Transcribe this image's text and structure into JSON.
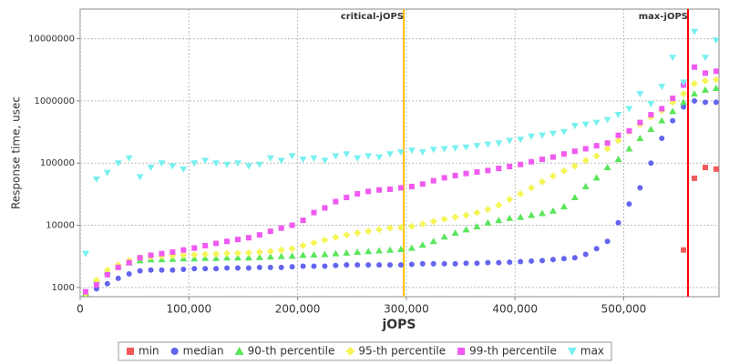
{
  "chart_data": {
    "type": "scatter",
    "x_label": "jOPS",
    "y_label": "Response time, usec",
    "log_y": true,
    "grid": true,
    "legend": "bottom",
    "xlim": [
      0,
      587600
    ],
    "ylim": [
      710,
      30000000
    ],
    "xticks": [
      0,
      {
        "value": 100000,
        "label": "100,000"
      },
      {
        "value": 200000,
        "label": "200,000"
      },
      {
        "value": 300000,
        "label": "300,000"
      },
      {
        "value": 400000,
        "label": "400,000"
      },
      {
        "value": 500000,
        "label": "500,000"
      }
    ],
    "yticks": [
      1000,
      10000,
      100000,
      1000000,
      10000000
    ],
    "vlines": [
      {
        "label": "critical-jOPS",
        "x": 297600,
        "color": "#ffc000"
      },
      {
        "label": "max-jOPS",
        "x": 559100,
        "color": "#ff0000"
      }
    ],
    "x": [
      5000,
      15000,
      25000,
      35000,
      45000,
      55000,
      65000,
      75000,
      85000,
      95000,
      105000,
      115000,
      125000,
      135000,
      145000,
      155000,
      165000,
      175000,
      185000,
      195000,
      205000,
      215000,
      225000,
      235000,
      245000,
      255000,
      265000,
      275000,
      285000,
      295000,
      305000,
      315000,
      325000,
      335000,
      345000,
      355000,
      365000,
      375000,
      385000,
      395000,
      405000,
      415000,
      425000,
      435000,
      445000,
      455000,
      465000,
      475000,
      485000,
      495000,
      505000,
      515000,
      525000,
      535000,
      545000,
      555000,
      565000,
      575000,
      585000
    ],
    "series": [
      {
        "name": "min",
        "color": "#f05a5a",
        "marker": "square",
        "values": [
          null,
          null,
          null,
          null,
          null,
          null,
          null,
          null,
          null,
          null,
          null,
          null,
          null,
          null,
          null,
          null,
          null,
          null,
          null,
          null,
          null,
          null,
          null,
          null,
          null,
          null,
          null,
          null,
          null,
          null,
          null,
          null,
          null,
          null,
          null,
          null,
          null,
          null,
          null,
          null,
          null,
          null,
          null,
          null,
          null,
          null,
          null,
          null,
          null,
          null,
          null,
          null,
          null,
          null,
          null,
          4000,
          57000,
          85000,
          80000
        ]
      },
      {
        "name": "median",
        "color": "#6464f0",
        "marker": "circle",
        "values": [
          800,
          950,
          1150,
          1400,
          1650,
          1850,
          1900,
          1900,
          1900,
          1950,
          2000,
          2000,
          2000,
          2050,
          2050,
          2050,
          2100,
          2100,
          2100,
          2150,
          2200,
          2200,
          2200,
          2250,
          2300,
          2300,
          2300,
          2300,
          2300,
          2300,
          2350,
          2400,
          2400,
          2400,
          2400,
          2450,
          2450,
          2500,
          2500,
          2550,
          2600,
          2650,
          2700,
          2800,
          2900,
          3000,
          3400,
          4200,
          5500,
          11000,
          22000,
          40000,
          100000,
          250000,
          480000,
          800000,
          1000000,
          950000,
          950000
        ]
      },
      {
        "name": "90-th percentile",
        "color": "#5ae65a",
        "marker": "triangle-up",
        "values": [
          800,
          1300,
          1800,
          2200,
          2500,
          2700,
          2800,
          2800,
          2850,
          2900,
          2900,
          2950,
          2950,
          3000,
          3000,
          3000,
          3050,
          3100,
          3150,
          3200,
          3300,
          3350,
          3400,
          3500,
          3600,
          3700,
          3800,
          3900,
          4000,
          4100,
          4300,
          4800,
          5500,
          6500,
          7500,
          8500,
          9500,
          11000,
          12000,
          13000,
          13500,
          14500,
          15500,
          17000,
          20000,
          28000,
          42000,
          58000,
          85000,
          115000,
          170000,
          250000,
          350000,
          480000,
          680000,
          950000,
          1300000,
          1500000,
          1600000
        ]
      },
      {
        "name": "95-th percentile",
        "color": "#f5f55a",
        "marker": "diamond",
        "values": [
          800,
          1300,
          1900,
          2300,
          2700,
          3000,
          3100,
          3200,
          3250,
          3300,
          3350,
          3400,
          3450,
          3500,
          3550,
          3600,
          3700,
          3800,
          4000,
          4200,
          4700,
          5200,
          5800,
          6400,
          7000,
          7500,
          8000,
          8500,
          9000,
          9200,
          9600,
          10500,
          11500,
          12500,
          13500,
          14500,
          16000,
          18000,
          21000,
          26000,
          32000,
          40000,
          50000,
          62000,
          75000,
          90000,
          110000,
          130000,
          170000,
          230000,
          320000,
          420000,
          550000,
          700000,
          950000,
          1300000,
          1900000,
          2100000,
          2200000
        ]
      },
      {
        "name": "99-th percentile",
        "color": "#f05af0",
        "marker": "square",
        "values": [
          850,
          1100,
          1600,
          2100,
          2500,
          3000,
          3300,
          3500,
          3700,
          4000,
          4300,
          4700,
          5100,
          5500,
          5900,
          6300,
          7000,
          8000,
          9000,
          10000,
          12000,
          16000,
          19000,
          24000,
          28000,
          32000,
          35000,
          37000,
          38000,
          40000,
          42000,
          46000,
          52000,
          58000,
          63000,
          68000,
          72000,
          76000,
          82000,
          88000,
          95000,
          105000,
          115000,
          125000,
          140000,
          155000,
          170000,
          190000,
          210000,
          280000,
          330000,
          450000,
          600000,
          750000,
          1100000,
          1800000,
          3500000,
          2800000,
          3000000
        ]
      },
      {
        "name": "max",
        "color": "#78f0f0",
        "marker": "triangle-down",
        "values": [
          3500,
          55000,
          70000,
          100000,
          120000,
          60000,
          85000,
          100000,
          90000,
          80000,
          100000,
          110000,
          100000,
          95000,
          100000,
          90000,
          95000,
          120000,
          110000,
          130000,
          115000,
          120000,
          110000,
          130000,
          140000,
          120000,
          130000,
          125000,
          140000,
          150000,
          160000,
          150000,
          165000,
          170000,
          175000,
          180000,
          190000,
          200000,
          210000,
          230000,
          240000,
          270000,
          280000,
          300000,
          320000,
          400000,
          420000,
          450000,
          500000,
          600000,
          750000,
          1300000,
          900000,
          1700000,
          5000000,
          2000000,
          13000000,
          5000000,
          9500000
        ]
      }
    ]
  }
}
